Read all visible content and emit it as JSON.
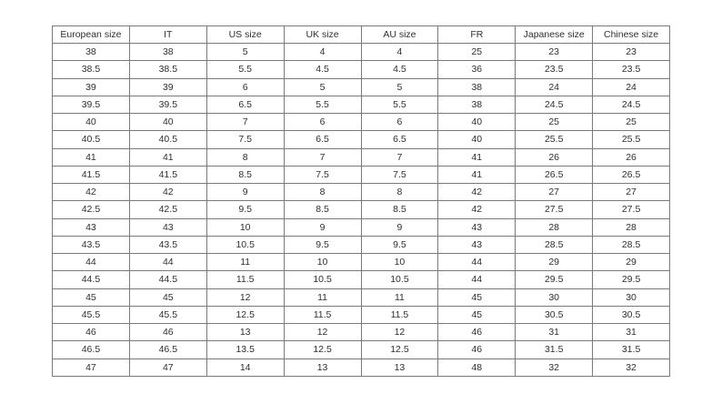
{
  "table": {
    "name": "shoe-size-conversion",
    "headers": [
      "European size",
      "IT",
      "US size",
      "UK size",
      "AU size",
      "FR",
      "Japanese size",
      "Chinese size"
    ],
    "rows": [
      [
        "38",
        "38",
        "5",
        "4",
        "4",
        "25",
        "23",
        "23"
      ],
      [
        "38.5",
        "38.5",
        "5.5",
        "4.5",
        "4.5",
        "36",
        "23.5",
        "23.5"
      ],
      [
        "39",
        "39",
        "6",
        "5",
        "5",
        "38",
        "24",
        "24"
      ],
      [
        "39.5",
        "39.5",
        "6.5",
        "5.5",
        "5.5",
        "38",
        "24.5",
        "24.5"
      ],
      [
        "40",
        "40",
        "7",
        "6",
        "6",
        "40",
        "25",
        "25"
      ],
      [
        "40.5",
        "40.5",
        "7.5",
        "6.5",
        "6.5",
        "40",
        "25.5",
        "25.5"
      ],
      [
        "41",
        "41",
        "8",
        "7",
        "7",
        "41",
        "26",
        "26"
      ],
      [
        "41.5",
        "41.5",
        "8.5",
        "7.5",
        "7.5",
        "41",
        "26.5",
        "26.5"
      ],
      [
        "42",
        "42",
        "9",
        "8",
        "8",
        "42",
        "27",
        "27"
      ],
      [
        "42.5",
        "42.5",
        "9.5",
        "8.5",
        "8.5",
        "42",
        "27.5",
        "27.5"
      ],
      [
        "43",
        "43",
        "10",
        "9",
        "9",
        "43",
        "28",
        "28"
      ],
      [
        "43.5",
        "43.5",
        "10.5",
        "9.5",
        "9.5",
        "43",
        "28.5",
        "28.5"
      ],
      [
        "44",
        "44",
        "11",
        "10",
        "10",
        "44",
        "29",
        "29"
      ],
      [
        "44.5",
        "44.5",
        "11.5",
        "10.5",
        "10.5",
        "44",
        "29.5",
        "29.5"
      ],
      [
        "45",
        "45",
        "12",
        "11",
        "11",
        "45",
        "30",
        "30"
      ],
      [
        "45.5",
        "45.5",
        "12.5",
        "11.5",
        "11.5",
        "45",
        "30.5",
        "30.5"
      ],
      [
        "46",
        "46",
        "13",
        "12",
        "12",
        "46",
        "31",
        "31"
      ],
      [
        "46.5",
        "46.5",
        "13.5",
        "12.5",
        "12.5",
        "46",
        "31.5",
        "31.5"
      ],
      [
        "47",
        "47",
        "14",
        "13",
        "13",
        "48",
        "32",
        "32"
      ]
    ]
  },
  "colors": {
    "border": "#7a7a7a",
    "text": "#2f2f2f",
    "background": "#ffffff"
  }
}
